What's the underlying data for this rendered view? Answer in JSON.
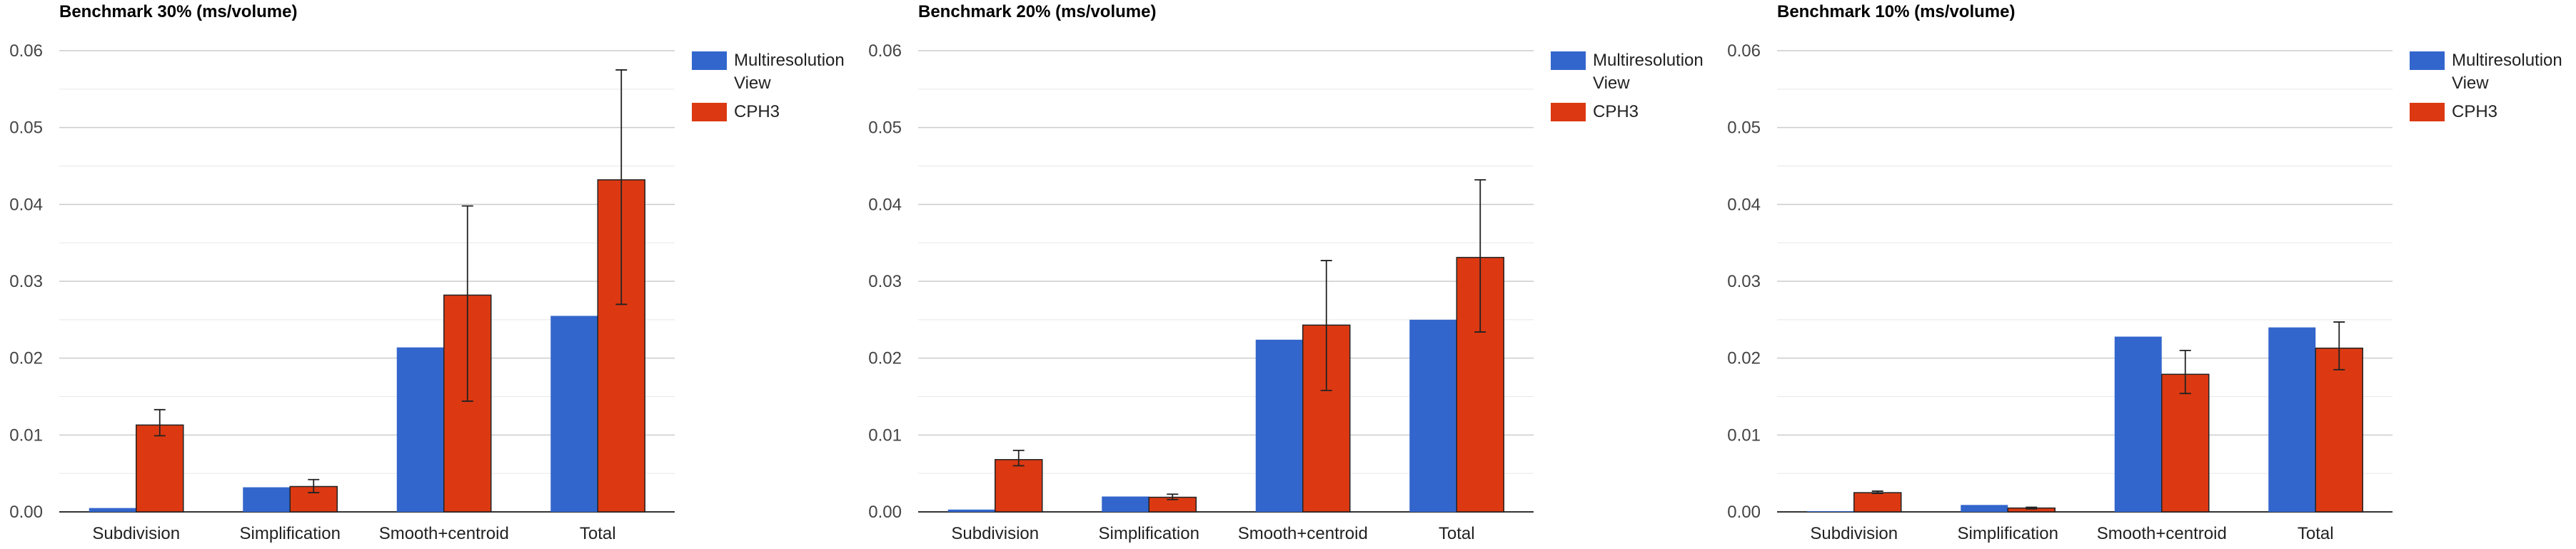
{
  "colors": {
    "multires": "#3366cc",
    "cph3": "#dc3912",
    "grid": "#cccccc",
    "minor_grid": "#e8e8e8",
    "axis": "#333333"
  },
  "chart_data": [
    {
      "type": "bar",
      "title": "Benchmark 30% (ms/volume)",
      "categories": [
        "Subdivision",
        "Simplification",
        "Smooth+centroid",
        "Total"
      ],
      "ylim": [
        0,
        0.06
      ],
      "yticks": [
        "0.00",
        "0.01",
        "0.02",
        "0.03",
        "0.04",
        "0.05",
        "0.06"
      ],
      "legend_position": "right",
      "grid": true,
      "series": [
        {
          "name_lines": [
            "Multiresolution",
            "View"
          ],
          "values": [
            0.0005,
            0.0032,
            0.0214,
            0.0255
          ],
          "err_low": [
            null,
            null,
            null,
            null
          ],
          "err_high": [
            null,
            null,
            null,
            null
          ]
        },
        {
          "name_lines": [
            "CPH3"
          ],
          "values": [
            0.0113,
            0.0033,
            0.0282,
            0.0432
          ],
          "err_low": [
            0.0099,
            0.0025,
            0.0144,
            0.027
          ],
          "err_high": [
            0.0133,
            0.0042,
            0.0398,
            0.0575
          ]
        }
      ]
    },
    {
      "type": "bar",
      "title": "Benchmark 20% (ms/volume)",
      "categories": [
        "Subdivision",
        "Simplification",
        "Smooth+centroid",
        "Total"
      ],
      "ylim": [
        0,
        0.06
      ],
      "yticks": [
        "0.00",
        "0.01",
        "0.02",
        "0.03",
        "0.04",
        "0.05",
        "0.06"
      ],
      "legend_position": "right",
      "grid": true,
      "series": [
        {
          "name_lines": [
            "Multiresolution",
            "View"
          ],
          "values": [
            0.0003,
            0.002,
            0.0224,
            0.025
          ],
          "err_low": [
            null,
            null,
            null,
            null
          ],
          "err_high": [
            null,
            null,
            null,
            null
          ]
        },
        {
          "name_lines": [
            "CPH3"
          ],
          "values": [
            0.0068,
            0.0019,
            0.0243,
            0.0331
          ],
          "err_low": [
            0.006,
            0.0016,
            0.0158,
            0.0234
          ],
          "err_high": [
            0.008,
            0.0023,
            0.0327,
            0.0432
          ]
        }
      ]
    },
    {
      "type": "bar",
      "title": "Benchmark 10% (ms/volume)",
      "categories": [
        "Subdivision",
        "Simplification",
        "Smooth+centroid",
        "Total"
      ],
      "ylim": [
        0,
        0.06
      ],
      "yticks": [
        "0.00",
        "0.01",
        "0.02",
        "0.03",
        "0.04",
        "0.05",
        "0.06"
      ],
      "legend_position": "right",
      "grid": true,
      "series": [
        {
          "name_lines": [
            "Multiresolution",
            "View"
          ],
          "values": [
            0.0001,
            0.0009,
            0.0228,
            0.024
          ],
          "err_low": [
            null,
            null,
            null,
            null
          ],
          "err_high": [
            null,
            null,
            null,
            null
          ]
        },
        {
          "name_lines": [
            "CPH3"
          ],
          "values": [
            0.0025,
            0.0005,
            0.0179,
            0.0213
          ],
          "err_low": [
            0.0024,
            0.0004,
            0.0154,
            0.0185
          ],
          "err_high": [
            0.0027,
            0.0006,
            0.021,
            0.0247
          ]
        }
      ]
    }
  ]
}
